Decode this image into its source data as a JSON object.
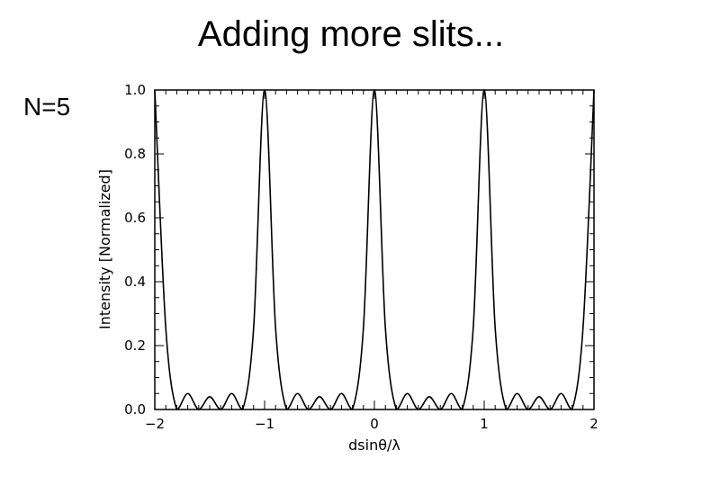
{
  "slide": {
    "title": "Adding more slits...",
    "label": "N=5"
  },
  "chart_data": {
    "type": "line",
    "title": "",
    "xlabel": "dsinθ/λ",
    "ylabel": "Intensity [Normalized]",
    "xlim": [
      -2,
      2
    ],
    "ylim": [
      0,
      1
    ],
    "xticks": [
      -2,
      -1,
      0,
      1,
      2
    ],
    "xtick_labels": [
      "−2",
      "−1",
      "0",
      "1",
      "2"
    ],
    "yticks": [
      0,
      0.2,
      0.4,
      0.6,
      0.8,
      1.0
    ],
    "ytick_labels": [
      "0.0",
      "0.2",
      "0.4",
      "0.6",
      "0.8",
      "1.0"
    ],
    "grid": false,
    "line_color": "#000000",
    "series": [
      {
        "x": [
          -2.0,
          -1.9,
          -1.8,
          -1.7,
          -1.6,
          -1.5,
          -1.4,
          -1.3,
          -1.2,
          -1.1,
          -1.0,
          -0.9,
          -0.8,
          -0.7,
          -0.6,
          -0.5,
          -0.4,
          -0.3,
          -0.2,
          -0.1,
          0.0,
          0.1,
          0.2,
          0.3,
          0.4,
          0.5,
          0.6,
          0.7,
          0.8,
          0.9,
          1.0,
          1.1,
          1.2,
          1.3,
          1.4,
          1.5,
          1.6,
          1.7,
          1.8,
          1.9,
          2.0
        ],
        "values": [
          1.0,
          0.255,
          0.0,
          0.05,
          0.0,
          0.04,
          0.0,
          0.05,
          0.0,
          0.255,
          1.0,
          0.255,
          0.0,
          0.05,
          0.0,
          0.04,
          0.0,
          0.05,
          0.0,
          0.255,
          1.0,
          0.255,
          0.0,
          0.05,
          0.0,
          0.04,
          0.0,
          0.05,
          0.0,
          0.255,
          1.0,
          0.255,
          0.0,
          0.05,
          0.0,
          0.04,
          0.0,
          0.05,
          0.0,
          0.255,
          1.0
        ]
      }
    ]
  }
}
